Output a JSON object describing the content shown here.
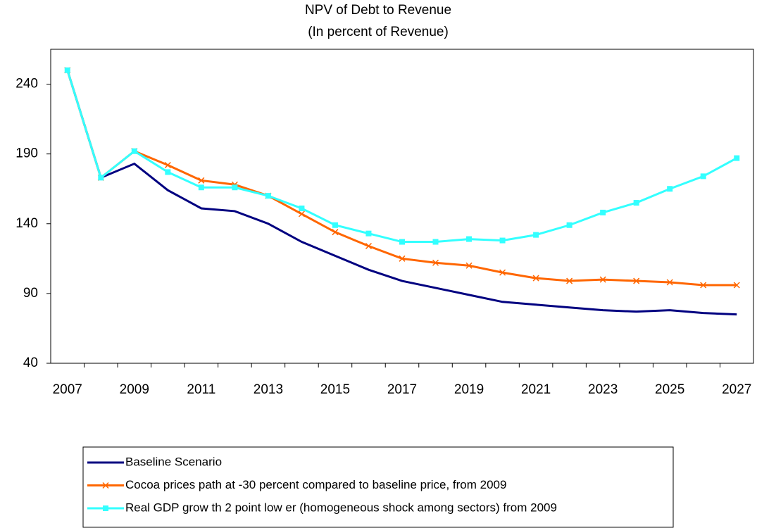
{
  "chart_data": {
    "type": "line",
    "title": "NPV of Debt to Revenue",
    "subtitle": "(In percent of Revenue)",
    "categories": [
      "2007",
      null,
      "2009",
      null,
      "2011",
      null,
      "2013",
      null,
      "2015",
      null,
      "2017",
      null,
      "2019",
      null,
      "2021",
      null,
      "2023",
      null,
      "2025",
      null,
      "2027"
    ],
    "series": [
      {
        "name": "Baseline Scenario",
        "color": "#000080",
        "marker": "none",
        "values": [
          250,
          173,
          183,
          164,
          151,
          149,
          140,
          127,
          117,
          107,
          99,
          94,
          89,
          84,
          82,
          80,
          78,
          77,
          78,
          76,
          75
        ]
      },
      {
        "name": "Cocoa prices path at -30 percent compared to baseline price, from 2009",
        "color": "#ff6600",
        "marker": "x",
        "values": [
          250,
          173,
          192,
          182,
          171,
          168,
          160,
          147,
          134,
          124,
          115,
          112,
          110,
          105,
          101,
          99,
          100,
          99,
          98,
          96,
          96
        ]
      },
      {
        "name": "Real GDP grow th 2 point low er (homogeneous shock among sectors) from 2009",
        "color": "#33ffff",
        "marker": "square",
        "values": [
          250,
          173,
          192,
          177,
          166,
          166,
          160,
          151,
          139,
          133,
          127,
          127,
          129,
          128,
          132,
          139,
          148,
          155,
          165,
          174,
          187
        ]
      }
    ],
    "ylim": [
      40,
      265
    ],
    "yticks": [
      40,
      90,
      140,
      190,
      240
    ]
  }
}
